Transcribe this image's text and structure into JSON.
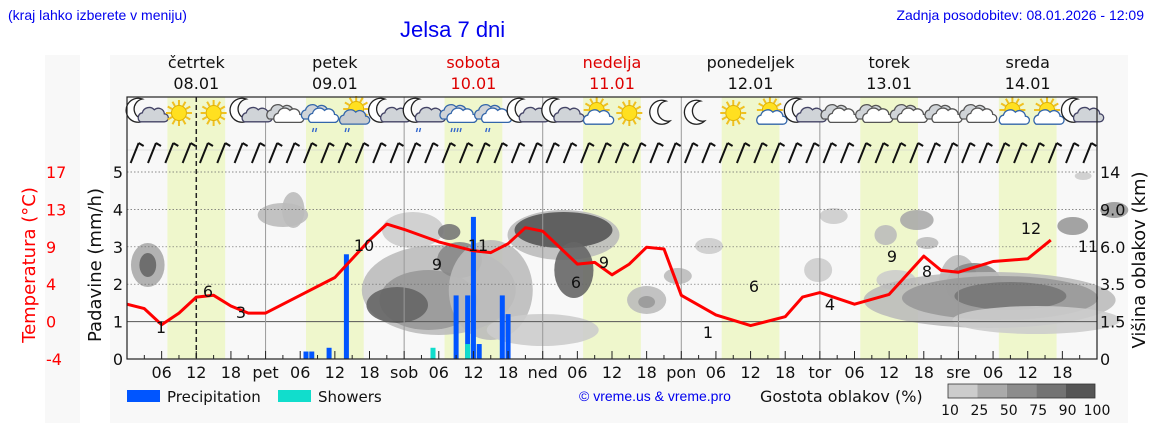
{
  "header": {
    "hint": "(kraj lahko izberete v meniju)",
    "title": "Jelsa 7 dni",
    "updated": "Zadnja posodobitev: 08.01.2026 - 12:09"
  },
  "days": [
    {
      "name": "četrtek",
      "date": "08.01",
      "weekend": false,
      "short": ""
    },
    {
      "name": "petek",
      "date": "09.01",
      "weekend": false,
      "short": "pet"
    },
    {
      "name": "sobota",
      "date": "10.01",
      "weekend": true,
      "short": "sob"
    },
    {
      "name": "nedelja",
      "date": "11.01",
      "weekend": true,
      "short": "ned"
    },
    {
      "name": "ponedeljek",
      "date": "12.01",
      "weekend": false,
      "short": "pon"
    },
    {
      "name": "torek",
      "date": "13.01",
      "weekend": false,
      "short": "tor"
    },
    {
      "name": "sreda",
      "date": "14.01",
      "weekend": false,
      "short": "sre"
    }
  ],
  "colors": {
    "title": "#0000ee",
    "weekend": "#dd0000",
    "temperature": "#ff0000",
    "precipitation": "#0055ff",
    "showers": "#11ddcc",
    "daylight": "#eff7cc",
    "panel": "#f8f8f8"
  },
  "legend": {
    "precipitation": "Precipitation",
    "showers": "Showers",
    "credit": "© vreme.us & vreme.pro",
    "cloud_density_label": "Gostota oblakov (%)",
    "cloud_density_ticks": [
      "10",
      "25",
      "50",
      "75",
      "90",
      "100"
    ],
    "cloud_density_colors": [
      "#cccccc",
      "#aaaaaa",
      "#8c8c8c",
      "#737373",
      "#555555"
    ]
  },
  "icons": [
    "moon-cloud",
    "sun",
    "sun",
    "moon-cloud",
    "cloudy",
    "cloud-rain",
    "sun-cloud-rain",
    "moon-cloud",
    "moon-cloud-rain",
    "cloud-heavy-rain",
    "cloud-rain",
    "moon-cloud",
    "moon-cloud",
    "sun-cloud",
    "sun",
    "moon",
    "moon",
    "sun",
    "sun-cloud",
    "moon-cloud",
    "cloudy",
    "cloudy",
    "cloudy",
    "cloudy",
    "cloudy",
    "sun-cloud",
    "sun-cloud",
    "moon-cloud"
  ],
  "chart_data": {
    "type": "line",
    "title": "Jelsa 7 dni",
    "x_unit": "hours from 08.01 00:00",
    "x_ticks": [
      "06",
      "12",
      "18",
      "pet",
      "06",
      "12",
      "18",
      "sob",
      "06",
      "12",
      "18",
      "ned",
      "06",
      "12",
      "18",
      "pon",
      "06",
      "12",
      "18",
      "tor",
      "06",
      "12",
      "18",
      "sre",
      "06",
      "12",
      "18"
    ],
    "now_marker_hour": 12,
    "daylight_hours": [
      7,
      17
    ],
    "left_axis_precip": {
      "label": "Padavine (mm/h)",
      "ticks": [
        "0",
        "1",
        "2",
        "3",
        "4",
        "5"
      ],
      "range": [
        0,
        5
      ]
    },
    "left_axis_temp": {
      "label": "Temperatura (°C)",
      "ticks": [
        "-4",
        "0",
        "4",
        "9",
        "13",
        "17"
      ],
      "range": [
        -4,
        17
      ]
    },
    "right_axis": {
      "label": "Višina oblakov (km)",
      "ticks": [
        "0",
        "1.5",
        "3.5",
        "6.0",
        "9.0",
        "14"
      ]
    },
    "series": [
      {
        "name": "Temperatura",
        "type": "line",
        "x": [
          0,
          3,
          6,
          9,
          12,
          15,
          18,
          21,
          24,
          30,
          36,
          42,
          45,
          48,
          54,
          60,
          63,
          66,
          69,
          72,
          78,
          81,
          84,
          87,
          90,
          93,
          96,
          102,
          108,
          114,
          117,
          120,
          126,
          132,
          138,
          141,
          144,
          150,
          156,
          160
        ],
        "values": [
          2,
          1.5,
          -0.3,
          1,
          2.8,
          3,
          1.8,
          1,
          1,
          3,
          5,
          9.2,
          11,
          10.4,
          9,
          8,
          7.8,
          8.8,
          10.6,
          10.2,
          6.5,
          6.7,
          5.3,
          6.5,
          8.4,
          8.2,
          3,
          0.8,
          -0.4,
          0.6,
          2.8,
          3.3,
          2,
          3.1,
          7.4,
          5.8,
          5.6,
          6.8,
          7.1,
          9.2
        ],
        "labels": [
          {
            "x": 5,
            "text": "1"
          },
          {
            "x": 13,
            "text": "6"
          },
          {
            "x": 19,
            "text": "3"
          },
          {
            "x": 40,
            "text": "10"
          },
          {
            "x": 66,
            "text": "9"
          },
          {
            "x": 74,
            "text": "11"
          },
          {
            "x": 87,
            "text": "6"
          },
          {
            "x": 93,
            "text": "9"
          },
          {
            "x": 110,
            "text": "1"
          },
          {
            "x": 122,
            "text": "6"
          },
          {
            "x": 139,
            "text": "4"
          },
          {
            "x": 153,
            "text": "9"
          },
          {
            "x": 158,
            "text": "8"
          },
          {
            "x": 157,
            "text": "12"
          },
          {
            "x": 168,
            "text": "11"
          }
        ]
      },
      {
        "name": "Precipitation",
        "type": "bar",
        "x": [
          31,
          32,
          35,
          38,
          53,
          57,
          59,
          60,
          61,
          65,
          66
        ],
        "values": [
          0.2,
          0.2,
          0.3,
          2.8,
          0.2,
          1.7,
          1.7,
          3.8,
          0.4,
          1.7,
          1.2
        ]
      },
      {
        "name": "Showers",
        "type": "bar",
        "x": [
          53,
          59
        ],
        "values": [
          0.3,
          0.4
        ]
      }
    ]
  }
}
